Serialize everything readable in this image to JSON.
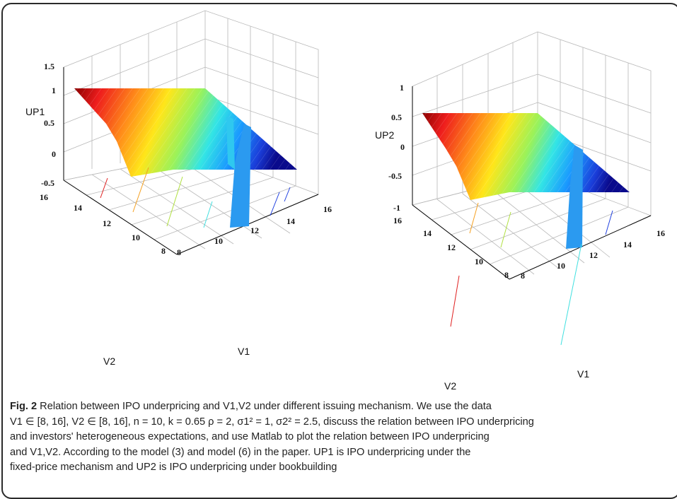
{
  "figure": {
    "left_plot": {
      "z_label": "UP1",
      "x_label": "V1",
      "y_label": "V2",
      "z_ticks": [
        "1.5",
        "1",
        "0.5",
        "0",
        "-0.5"
      ],
      "v1_ticks": [
        "8",
        "10",
        "12",
        "14",
        "16"
      ],
      "v2_ticks": [
        "16",
        "14",
        "12",
        "10",
        "8"
      ]
    },
    "right_plot": {
      "z_label": "UP2",
      "x_label": "V1",
      "y_label": "V2",
      "z_ticks": [
        "1",
        "0.5",
        "0",
        "-0.5",
        "-1"
      ],
      "v1_ticks": [
        "8",
        "10",
        "12",
        "14",
        "16"
      ],
      "v2_ticks": [
        "16",
        "14",
        "12",
        "10",
        "8"
      ]
    }
  },
  "caption": {
    "fig_label": "Fig. 2",
    "title_text": "Relation between IPO underpricing and V1,V2 under different issuing mechanism. We use the data",
    "line2": "V1 ∈ [8, 16], V2 ∈ [8, 16], n = 10,  k = 0.65 ρ = 2, σ1² = 1, σ2² = 2.5, discuss the relation between IPO underpricing",
    "line3": "and investors' heterogeneous expectations, and use Matlab to plot the relation between IPO underpricing",
    "line4": "and V1,V2. According to the model (3) and model (6) in the paper. UP1 is IPO underpricing under the",
    "line5": "fixed-price mechanism and UP2 is IPO underpricing under bookbuilding"
  },
  "colors": {
    "surface_high": "#8b0000",
    "surface_mid": "#ffff00",
    "surface_low": "#00008b",
    "grid": "#b8b8b8",
    "axis": "#000000"
  }
}
